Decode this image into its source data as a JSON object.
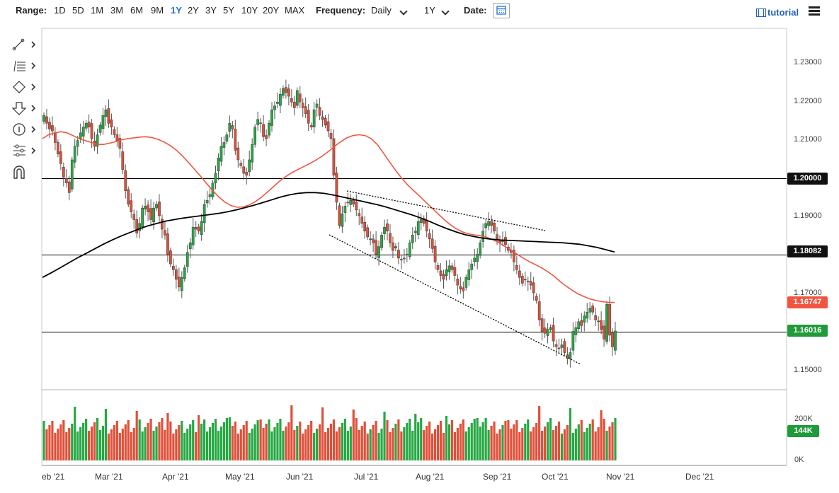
{
  "toolbar": {
    "range_label": "Range:",
    "ranges": [
      "1D",
      "5D",
      "1M",
      "3M",
      "6M",
      "9M",
      "1Y",
      "2Y",
      "3Y",
      "5Y",
      "10Y",
      "20Y",
      "MAX"
    ],
    "active_range": "1Y",
    "frequency_label": "Frequency:",
    "frequency_value": "Daily",
    "period_value": "1Y",
    "date_label": "Date:",
    "tutorial_label": "tutorial"
  },
  "drawing_tools": [
    "line-tool-icon",
    "fib-tool-icon",
    "shape-tool-icon",
    "arrow-tool-icon",
    "annotation-tool-icon",
    "settings-tool-icon",
    "magnet-tool-icon"
  ],
  "price_axis": [
    "1.23000",
    "1.22000",
    "1.21000",
    "1.20000",
    "1.19000",
    "1.18082",
    "1.17000",
    "1.16747",
    "1.16016",
    "1.15000"
  ],
  "markers": {
    "level_1": {
      "text": "1.20000",
      "bg": "#111111",
      "fg": "#ffffff"
    },
    "level_2": {
      "text": "1.18082",
      "bg": "#111111",
      "fg": "#ffffff"
    },
    "ma_fast": {
      "text": "1.16747",
      "bg": "#f0553f",
      "fg": "#ffffff"
    },
    "last_price": {
      "text": "1.16016",
      "bg": "#1f9b3a",
      "fg": "#ffffff"
    },
    "volume": {
      "text": "144K",
      "bg": "#1f9b3a",
      "fg": "#ffffff"
    }
  },
  "volume_axis": [
    "200K",
    "0K"
  ],
  "months": [
    "eb '21",
    "Mar '21",
    "Apr '21",
    "May '21",
    "Jun '21",
    "Jul '21",
    "Aug '21",
    "Sep '21",
    "Oct '21",
    "Nov '21",
    "Dec '21"
  ],
  "colors": {
    "up": "#27a844",
    "down": "#e0503a",
    "ma_fast": "#f0553f",
    "ma_slow": "#000000",
    "accent": "#1e6fd9"
  },
  "chart_data": {
    "type": "candlestick",
    "ylim": [
      1.145,
      1.235
    ],
    "close": [
      1.216,
      1.214,
      1.2125,
      1.212,
      1.209,
      1.206,
      1.2035,
      1.2,
      1.1985,
      1.196,
      1.2045,
      1.208,
      1.2095,
      1.2115,
      1.213,
      1.214,
      1.213,
      1.21,
      1.208,
      1.211,
      1.2135,
      1.216,
      1.2175,
      1.214,
      1.213,
      1.211,
      1.2095,
      1.2075,
      1.202,
      1.1965,
      1.193,
      1.191,
      1.189,
      1.1855,
      1.188,
      1.192,
      1.1925,
      1.191,
      1.189,
      1.192,
      1.193,
      1.19,
      1.1865,
      1.185,
      1.18,
      1.1775,
      1.176,
      1.1735,
      1.1715,
      1.174,
      1.1765,
      1.1805,
      1.183,
      1.187,
      1.1865,
      1.186,
      1.1885,
      1.193,
      1.194,
      1.1955,
      1.1985,
      1.201,
      1.205,
      1.208,
      1.209,
      1.211,
      1.214,
      1.2125,
      1.207,
      1.2045,
      1.203,
      1.201,
      1.2005,
      1.2045,
      1.2085,
      1.213,
      1.215,
      1.214,
      1.2105,
      1.21,
      1.214,
      1.2175,
      1.2185,
      1.2195,
      1.2215,
      1.223,
      1.222,
      1.221,
      1.2195,
      1.218,
      1.2225,
      1.2195,
      1.218,
      1.2165,
      1.214,
      1.213,
      1.2175,
      1.219,
      1.216,
      1.215,
      1.2135,
      1.212,
      1.21,
      1.2005,
      1.1935,
      1.1875,
      1.1905,
      1.1925,
      1.1935,
      1.194,
      1.193,
      1.1915,
      1.19,
      1.188,
      1.186,
      1.1845,
      1.184,
      1.183,
      1.18,
      1.182,
      1.185,
      1.187,
      1.186,
      1.183,
      1.181,
      1.182,
      1.179,
      1.1785,
      1.179,
      1.18,
      1.183,
      1.185,
      1.186,
      1.1885,
      1.189,
      1.188,
      1.186,
      1.184,
      1.1815,
      1.178,
      1.176,
      1.1745,
      1.1735,
      1.176,
      1.177,
      1.176,
      1.1745,
      1.172,
      1.171,
      1.1705,
      1.174,
      1.176,
      1.1775,
      1.179,
      1.18,
      1.183,
      1.186,
      1.188,
      1.1885,
      1.1875,
      1.186,
      1.184,
      1.183,
      1.1835,
      1.1825,
      1.181,
      1.1805,
      1.178,
      1.176,
      1.174,
      1.1725,
      1.1735,
      1.173,
      1.172,
      1.17,
      1.168,
      1.163,
      1.16,
      1.1595,
      1.1605,
      1.161,
      1.1575,
      1.156,
      1.1555,
      1.1565,
      1.1545,
      1.153,
      1.1545,
      1.16,
      1.161,
      1.1625,
      1.1615,
      1.164,
      1.165,
      1.166,
      1.165,
      1.163,
      1.1625,
      1.1605,
      1.158,
      1.167,
      1.159,
      1.156,
      1.1601
    ],
    "ma_fast": [
      1.21,
      1.211,
      1.2115,
      1.2118,
      1.2115,
      1.2108,
      1.21,
      1.2095,
      1.209,
      1.2085,
      1.2085,
      1.2088,
      1.2092,
      1.2097,
      1.21,
      1.2102,
      1.2104,
      1.2105,
      1.2103,
      1.2098,
      1.2091,
      1.2082,
      1.207,
      1.2055,
      1.2038,
      1.202,
      1.2002,
      1.1983,
      1.1965,
      1.1948,
      1.1935,
      1.1926,
      1.1922,
      1.1923,
      1.1928,
      1.1937,
      1.1948,
      1.1962,
      1.1976,
      1.199,
      1.2002,
      1.2012,
      1.202,
      1.2028,
      1.2036,
      1.2045,
      1.2055,
      1.2067,
      1.208,
      1.2092,
      1.2102,
      1.2108,
      1.211,
      1.2108,
      1.21,
      1.2085,
      1.2063,
      1.204,
      1.2018,
      1.1998,
      1.198,
      1.1965,
      1.195,
      1.1935,
      1.192,
      1.1905,
      1.189,
      1.1877,
      1.1866,
      1.1858,
      1.1853,
      1.185,
      1.1848,
      1.1844,
      1.1838,
      1.183,
      1.182,
      1.181,
      1.18,
      1.179,
      1.1781,
      1.1773,
      1.1765,
      1.1755,
      1.1744,
      1.173,
      1.1718,
      1.1707,
      1.1697,
      1.169,
      1.1684,
      1.168,
      1.1677,
      1.1675,
      1.1675
    ],
    "ma_slow": [
      1.174,
      1.1752,
      1.1765,
      1.1778,
      1.1791,
      1.1803,
      1.1815,
      1.1827,
      1.1838,
      1.1848,
      1.1857,
      1.1866,
      1.1874,
      1.188,
      1.1886,
      1.189,
      1.1894,
      1.1897,
      1.19,
      1.1903,
      1.1906,
      1.191,
      1.1915,
      1.1921,
      1.1927,
      1.1934,
      1.1941,
      1.1948,
      1.1954,
      1.1958,
      1.196,
      1.196,
      1.1958,
      1.1954,
      1.1949,
      1.1944,
      1.1939,
      1.1934,
      1.1929,
      1.1923,
      1.1916,
      1.1909,
      1.1902,
      1.1894,
      1.1885,
      1.1875,
      1.1866,
      1.1858,
      1.1851,
      1.1846,
      1.1842,
      1.1839,
      1.1837,
      1.1836,
      1.1835,
      1.1834,
      1.1833,
      1.1832,
      1.1831,
      1.183,
      1.1828,
      1.1826,
      1.1822,
      1.1818,
      1.1812,
      1.1806
    ]
  }
}
